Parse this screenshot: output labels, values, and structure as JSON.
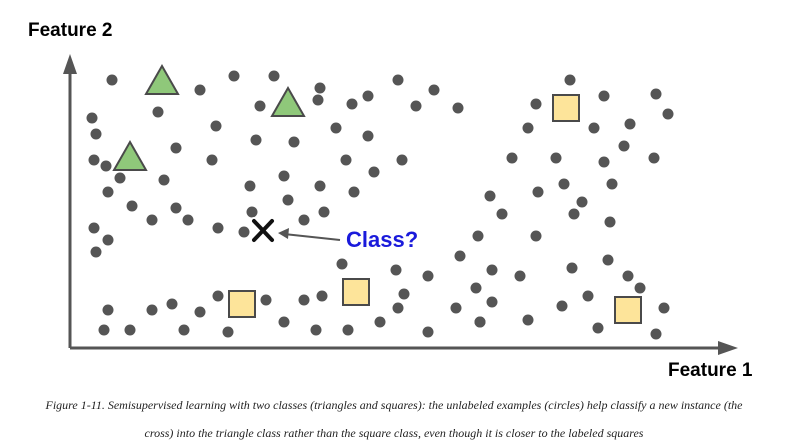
{
  "figure": {
    "y_axis_label": "Feature 2",
    "x_axis_label": "Feature 1",
    "annotation": "Class?",
    "caption_line1": "Figure 1-11. Semisupervised learning with two classes (triangles and squares): the unlabeled examples (circles) help classify a new instance (the",
    "caption_line2": "cross) into the triangle class rather than the square class, even though it is closer to the labeled squares"
  },
  "colors": {
    "circle": "#555555",
    "triangle_fill": "#8fc87a",
    "triangle_stroke": "#4a4a4a",
    "square_fill": "#fde49a",
    "square_stroke": "#4a4a4a",
    "annotation": "#1a1adb",
    "axis": "#555555"
  },
  "legend_semantics": {
    "circles": "unlabeled",
    "triangles": "labeled class",
    "squares": "labeled class",
    "cross": "new instance"
  }
}
